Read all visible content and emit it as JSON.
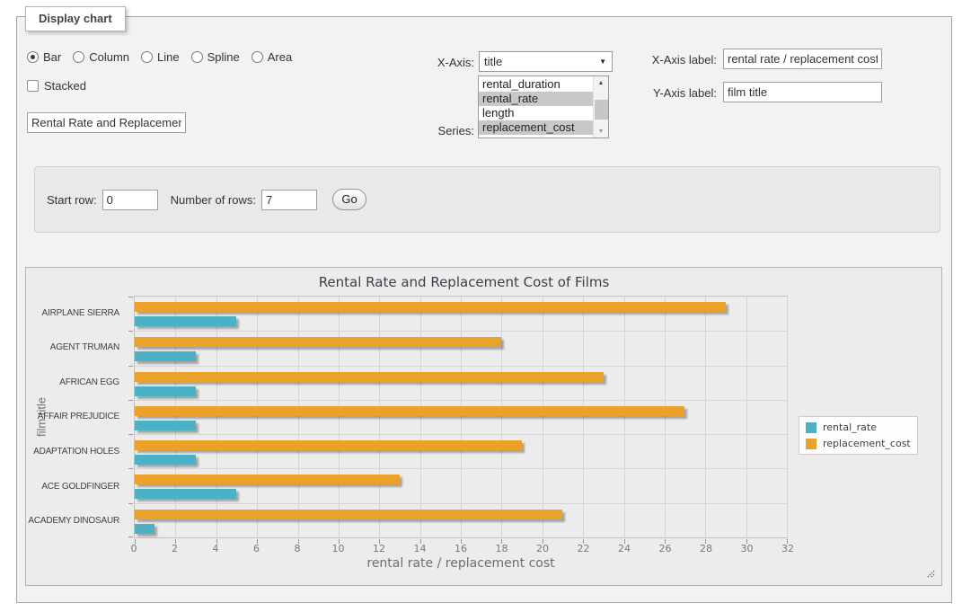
{
  "panel": {
    "legend_title": "Display chart"
  },
  "icons": {
    "dropdown_arrow": "▼",
    "scroll_up": "▲",
    "scroll_down": "▼"
  },
  "controls": {
    "chart_types": {
      "options": [
        {
          "label": "Bar",
          "selected": true
        },
        {
          "label": "Column",
          "selected": false
        },
        {
          "label": "Line",
          "selected": false
        },
        {
          "label": "Spline",
          "selected": false
        },
        {
          "label": "Area",
          "selected": false
        }
      ]
    },
    "stacked": {
      "label": "Stacked",
      "checked": false
    },
    "chart_title_input": {
      "value": "Rental Rate and Replacement Cost of Films"
    },
    "x_axis": {
      "label": "X-Axis:",
      "selected_value": "title"
    },
    "series_select": {
      "label": "Series:",
      "options": [
        {
          "label": "rental_duration",
          "selected": false
        },
        {
          "label": "rental_rate",
          "selected": true
        },
        {
          "label": "length",
          "selected": false
        },
        {
          "label": "replacement_cost",
          "selected": true
        }
      ]
    },
    "x_axis_label": {
      "label": "X-Axis label:",
      "value": "rental rate / replacement cost"
    },
    "y_axis_label": {
      "label": "Y-Axis label:",
      "value": "film title"
    }
  },
  "row_controls": {
    "start_row_label": "Start row:",
    "start_row_value": "0",
    "number_of_rows_label": "Number of rows:",
    "number_of_rows_value": "7",
    "go_button_label": "Go"
  },
  "chart_data": {
    "type": "bar",
    "orientation": "horizontal",
    "title": "Rental Rate and Replacement Cost of Films",
    "xlabel": "rental rate / replacement cost",
    "ylabel": "film title",
    "categories": [
      "AIRPLANE SIERRA",
      "AGENT TRUMAN",
      "AFRICAN EGG",
      "AFFAIR PREJUDICE",
      "ADAPTATION HOLES",
      "ACE GOLDFINGER",
      "ACADEMY DINOSAUR"
    ],
    "series": [
      {
        "name": "rental_rate",
        "color": "#4bb2c5",
        "values": [
          4.99,
          2.99,
          2.99,
          2.99,
          2.99,
          4.99,
          0.99
        ]
      },
      {
        "name": "replacement_cost",
        "color": "#EAA228",
        "values": [
          28.99,
          17.99,
          22.99,
          26.99,
          18.99,
          12.99,
          20.99
        ]
      }
    ],
    "group_order_top_to_bottom": [
      "replacement_cost",
      "rental_rate"
    ],
    "xlim": [
      0,
      32
    ],
    "xticks": [
      0,
      2,
      4,
      6,
      8,
      10,
      12,
      14,
      16,
      18,
      20,
      22,
      24,
      26,
      28,
      30,
      32
    ],
    "grid": true,
    "legend_position": "right"
  }
}
